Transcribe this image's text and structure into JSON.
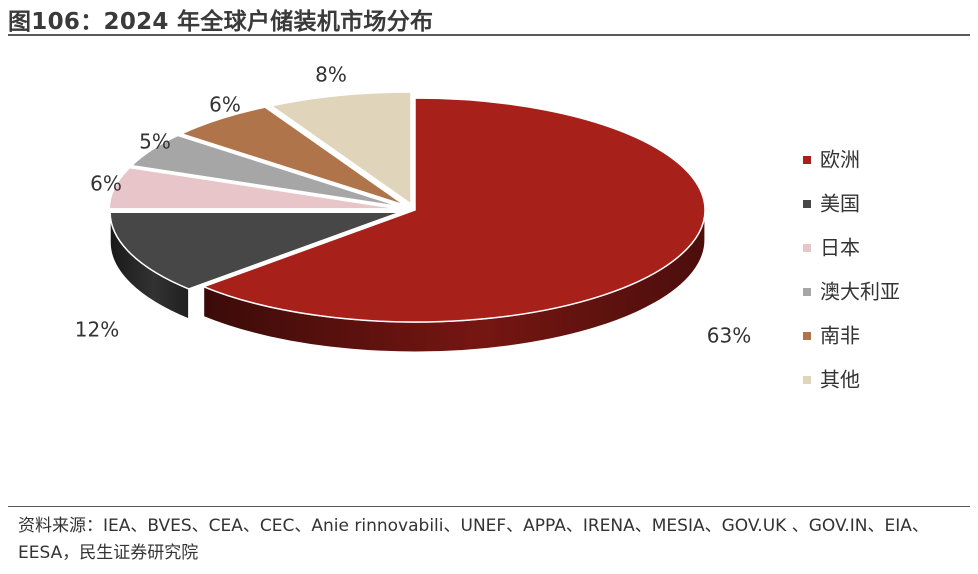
{
  "header": {
    "figure_title": "图106：2024 年全球户储装机市场分布"
  },
  "chart_data": {
    "type": "pie",
    "style": "3d-exploded-pie",
    "categories": [
      "欧洲",
      "美国",
      "日本",
      "澳大利亚",
      "南非",
      "其他"
    ],
    "values": [
      63,
      12,
      6,
      5,
      6,
      8
    ],
    "unit": "%",
    "data_labels": [
      "63%",
      "12%",
      "6%",
      "5%",
      "6%",
      "8%"
    ],
    "colors": [
      "#A8201A",
      "#474747",
      "#E8C5C8",
      "#A6A6A6",
      "#B0744A",
      "#E0D5BB"
    ],
    "legend_position": "right",
    "title": ""
  },
  "footer": {
    "source_text": "资料来源：IEA、BVES、CEA、CEC、Anie rinnovabili、UNEF、APPA、IRENA、MESIA、GOV.UK 、GOV.IN、EIA、EESA，民生证券研究院"
  }
}
